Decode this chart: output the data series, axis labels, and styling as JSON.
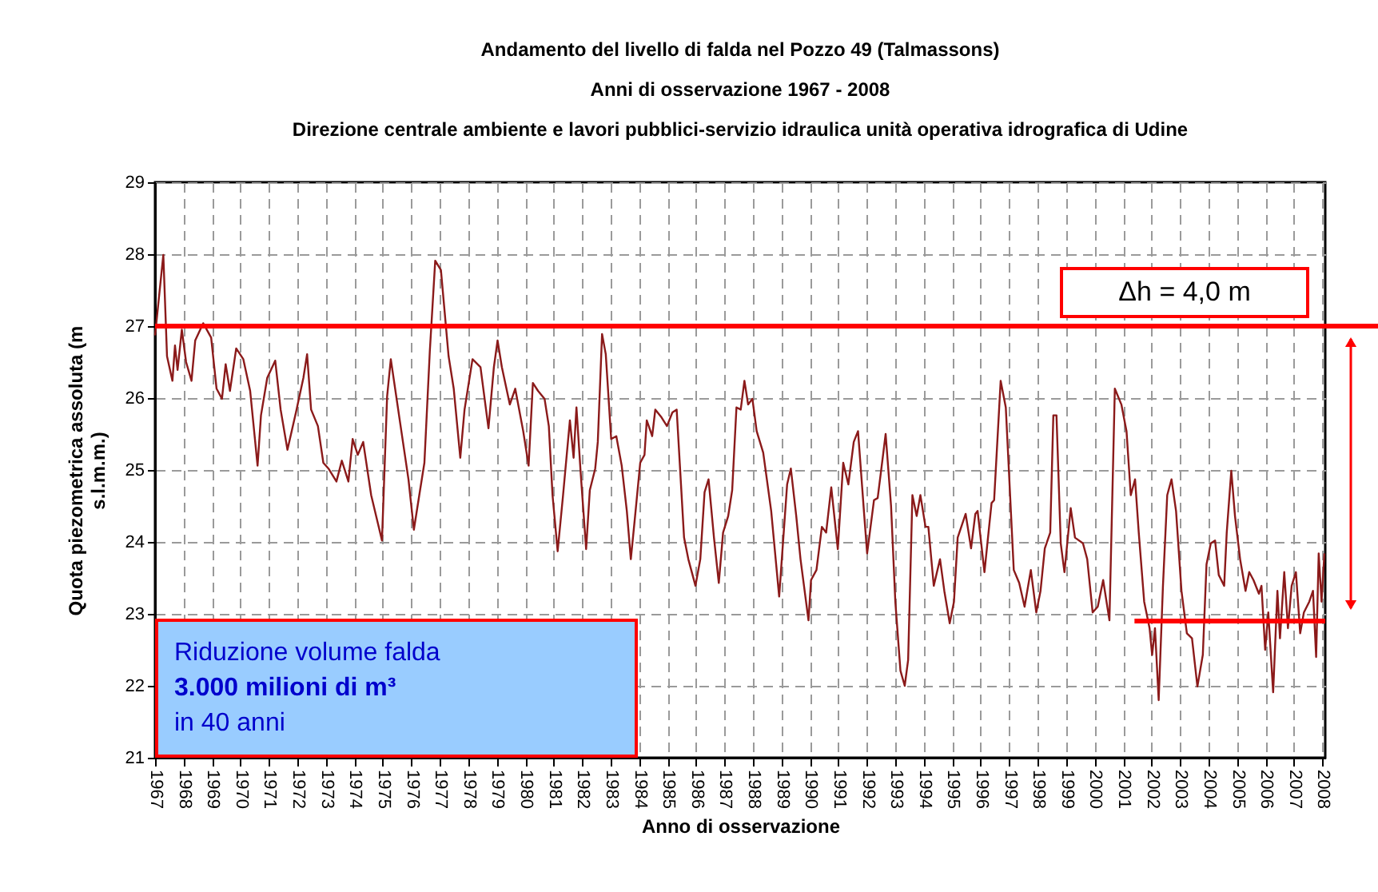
{
  "chart_data": {
    "type": "line",
    "title": [
      "Andamento del livello di falda nel Pozzo 49 (Talmassons)",
      "Anni di osservazione 1967 - 2008",
      "Direzione centrale ambiente e lavori pubblici-servizio idraulica unità operativa idrografica di Udine"
    ],
    "xlabel": "Anno di osservazione",
    "ylabel": [
      "Quota piezometrica assoluta (m",
      "s.l.m.m.)"
    ],
    "xlim": [
      1967,
      2008.1
    ],
    "xticks": [
      1967,
      1968,
      1969,
      1970,
      1971,
      1972,
      1973,
      1974,
      1975,
      1976,
      1977,
      1978,
      1979,
      1980,
      1981,
      1982,
      1983,
      1984,
      1985,
      1986,
      1987,
      1988,
      1989,
      1990,
      1991,
      1992,
      1993,
      1994,
      1995,
      1996,
      1997,
      1998,
      1999,
      2000,
      2001,
      2002,
      2003,
      2004,
      2005,
      2006,
      2007,
      2008
    ],
    "ylim": [
      21,
      29
    ],
    "yticks": [
      21,
      22,
      23,
      24,
      25,
      26,
      27,
      28,
      29
    ],
    "grid": true,
    "series": [
      {
        "color": "#8b1a1a",
        "line_style": "solid",
        "x": [
          1967.0,
          1967.29,
          1967.42,
          1967.61,
          1967.7,
          1967.79,
          1967.94,
          1968.09,
          1968.28,
          1968.41,
          1968.69,
          1968.97,
          1969.16,
          1969.35,
          1969.48,
          1969.63,
          1969.85,
          1970.1,
          1970.34,
          1970.6,
          1970.72,
          1970.94,
          1971.22,
          1971.41,
          1971.65,
          1971.97,
          1972.21,
          1972.34,
          1972.48,
          1972.72,
          1972.91,
          1973.09,
          1973.37,
          1973.56,
          1973.79,
          1973.94,
          1974.12,
          1974.31,
          1974.59,
          1974.97,
          1975.15,
          1975.28,
          1975.58,
          1975.9,
          1976.09,
          1976.28,
          1976.46,
          1976.65,
          1976.84,
          1977.04,
          1977.31,
          1977.49,
          1977.72,
          1977.87,
          1978.15,
          1978.43,
          1978.71,
          1978.9,
          1979.03,
          1979.18,
          1979.46,
          1979.65,
          1979.93,
          1980.12,
          1980.27,
          1980.45,
          1980.68,
          1980.83,
          1980.96,
          1981.14,
          1981.33,
          1981.57,
          1981.7,
          1981.8,
          1981.95,
          1982.14,
          1982.27,
          1982.46,
          1982.55,
          1982.7,
          1982.83,
          1983.02,
          1983.2,
          1983.39,
          1983.57,
          1983.71,
          1983.86,
          1984.04,
          1984.19,
          1984.27,
          1984.46,
          1984.57,
          1984.79,
          1984.98,
          1985.17,
          1985.32,
          1985.58,
          1985.73,
          1985.98,
          1986.15,
          1986.3,
          1986.44,
          1986.63,
          1986.8,
          1986.95,
          1987.13,
          1987.27,
          1987.42,
          1987.57,
          1987.7,
          1987.83,
          1987.98,
          1988.13,
          1988.36,
          1988.64,
          1988.92,
          1989.2,
          1989.33,
          1989.52,
          1989.67,
          1989.95,
          1990.04,
          1990.23,
          1990.42,
          1990.57,
          1990.75,
          1990.98,
          1991.17,
          1991.35,
          1991.54,
          1991.69,
          1991.91,
          1992.01,
          1992.25,
          1992.38,
          1992.51,
          1992.66,
          1992.85,
          1993.0,
          1993.18,
          1993.33,
          1993.45,
          1993.6,
          1993.75,
          1993.88,
          1994.06,
          1994.16,
          1994.35,
          1994.57,
          1994.72,
          1994.91,
          1995.06,
          1995.19,
          1995.47,
          1995.66,
          1995.81,
          1995.89,
          1996.13,
          1996.38,
          1996.47,
          1996.7,
          1996.88,
          1997.16,
          1997.35,
          1997.54,
          1997.76,
          1997.95,
          1998.1,
          1998.25,
          1998.44,
          1998.55,
          1998.66,
          1998.81,
          1998.94,
          1999.16,
          1999.31,
          1999.59,
          1999.74,
          1999.93,
          2000.11,
          2000.3,
          2000.52,
          2000.71,
          2000.94,
          2001.12,
          2001.27,
          2001.42,
          2001.55,
          2001.74,
          2001.93,
          2002.02,
          2002.12,
          2002.25,
          2002.4,
          2002.55,
          2002.7,
          2002.86,
          2003.05,
          2003.24,
          2003.42,
          2003.61,
          2003.8,
          2003.93,
          2004.08,
          2004.23,
          2004.36,
          2004.55,
          2004.64,
          2004.8,
          2004.93,
          2005.11,
          2005.3,
          2005.43,
          2005.58,
          2005.77,
          2005.86,
          2005.99,
          2006.1,
          2006.27,
          2006.42,
          2006.51,
          2006.66,
          2006.79,
          2006.92,
          2007.07,
          2007.22,
          2007.35,
          2007.54,
          2007.67,
          2007.78,
          2007.87,
          2007.97,
          2008.07
        ],
        "values": [
          26.87,
          27.99,
          26.58,
          26.24,
          26.73,
          26.39,
          26.95,
          26.5,
          26.24,
          26.8,
          27.04,
          26.84,
          26.13,
          25.99,
          26.47,
          26.1,
          26.69,
          26.54,
          26.1,
          25.06,
          25.76,
          26.28,
          26.52,
          25.84,
          25.28,
          25.84,
          26.28,
          26.61,
          25.84,
          25.61,
          25.1,
          25.02,
          24.84,
          25.13,
          24.84,
          25.43,
          25.21,
          25.39,
          24.65,
          24.02,
          26.02,
          26.54,
          25.73,
          24.87,
          24.17,
          24.65,
          25.1,
          26.65,
          27.91,
          27.78,
          26.58,
          26.13,
          25.17,
          25.84,
          26.54,
          26.43,
          25.58,
          26.43,
          26.8,
          26.43,
          25.91,
          26.13,
          25.54,
          25.06,
          26.21,
          26.1,
          25.99,
          25.61,
          24.65,
          23.87,
          24.65,
          25.69,
          25.17,
          25.87,
          24.95,
          23.9,
          24.72,
          25.02,
          25.39,
          26.89,
          26.61,
          25.43,
          25.47,
          25.06,
          24.43,
          23.76,
          24.36,
          25.1,
          25.21,
          25.69,
          25.47,
          25.84,
          25.73,
          25.61,
          25.8,
          25.84,
          24.06,
          23.76,
          23.39,
          23.76,
          24.69,
          24.87,
          24.06,
          23.43,
          24.13,
          24.36,
          24.72,
          25.87,
          25.84,
          26.24,
          25.91,
          25.99,
          25.54,
          25.24,
          24.43,
          23.24,
          24.8,
          25.02,
          24.36,
          23.76,
          22.91,
          23.47,
          23.61,
          24.21,
          24.13,
          24.76,
          23.9,
          25.1,
          24.8,
          25.39,
          25.54,
          24.36,
          23.84,
          24.58,
          24.61,
          25.02,
          25.5,
          24.5,
          23.17,
          22.21,
          22.0,
          22.36,
          24.65,
          24.36,
          24.65,
          24.21,
          24.21,
          23.39,
          23.76,
          23.32,
          22.87,
          23.17,
          24.06,
          24.39,
          23.91,
          24.39,
          24.43,
          23.58,
          24.54,
          24.58,
          26.24,
          25.87,
          23.61,
          23.43,
          23.1,
          23.61,
          23.02,
          23.32,
          23.91,
          24.13,
          25.76,
          25.76,
          23.98,
          23.58,
          24.47,
          24.06,
          23.98,
          23.76,
          23.02,
          23.1,
          23.47,
          22.91,
          26.13,
          25.91,
          25.54,
          24.65,
          24.87,
          24.13,
          23.17,
          22.8,
          22.43,
          22.8,
          21.8,
          23.39,
          24.65,
          24.87,
          24.43,
          23.32,
          22.73,
          22.66,
          21.99,
          22.43,
          23.69,
          23.98,
          24.02,
          23.54,
          23.39,
          24.13,
          24.99,
          24.36,
          23.76,
          23.32,
          23.58,
          23.47,
          23.28,
          23.39,
          22.5,
          23.02,
          21.91,
          23.32,
          22.66,
          23.58,
          22.8,
          23.39,
          23.58,
          22.73,
          23.02,
          23.17,
          23.32,
          22.4,
          23.84,
          23.17,
          23.84
        ]
      },
      {
        "type": "line",
        "color": "#ff0000",
        "line_style": "solid",
        "x": [
          2001.4,
          2008.1
        ],
        "values": [
          22.9,
          22.9
        ]
      }
    ],
    "ref_lines": [
      {
        "axis": "y",
        "value": 27,
        "color": "#ff0000"
      }
    ],
    "annotations": [
      "Δh = 4,0 m",
      "Riduzione volume falda",
      "3.000 milioni di m³",
      "in 40 anni"
    ]
  }
}
